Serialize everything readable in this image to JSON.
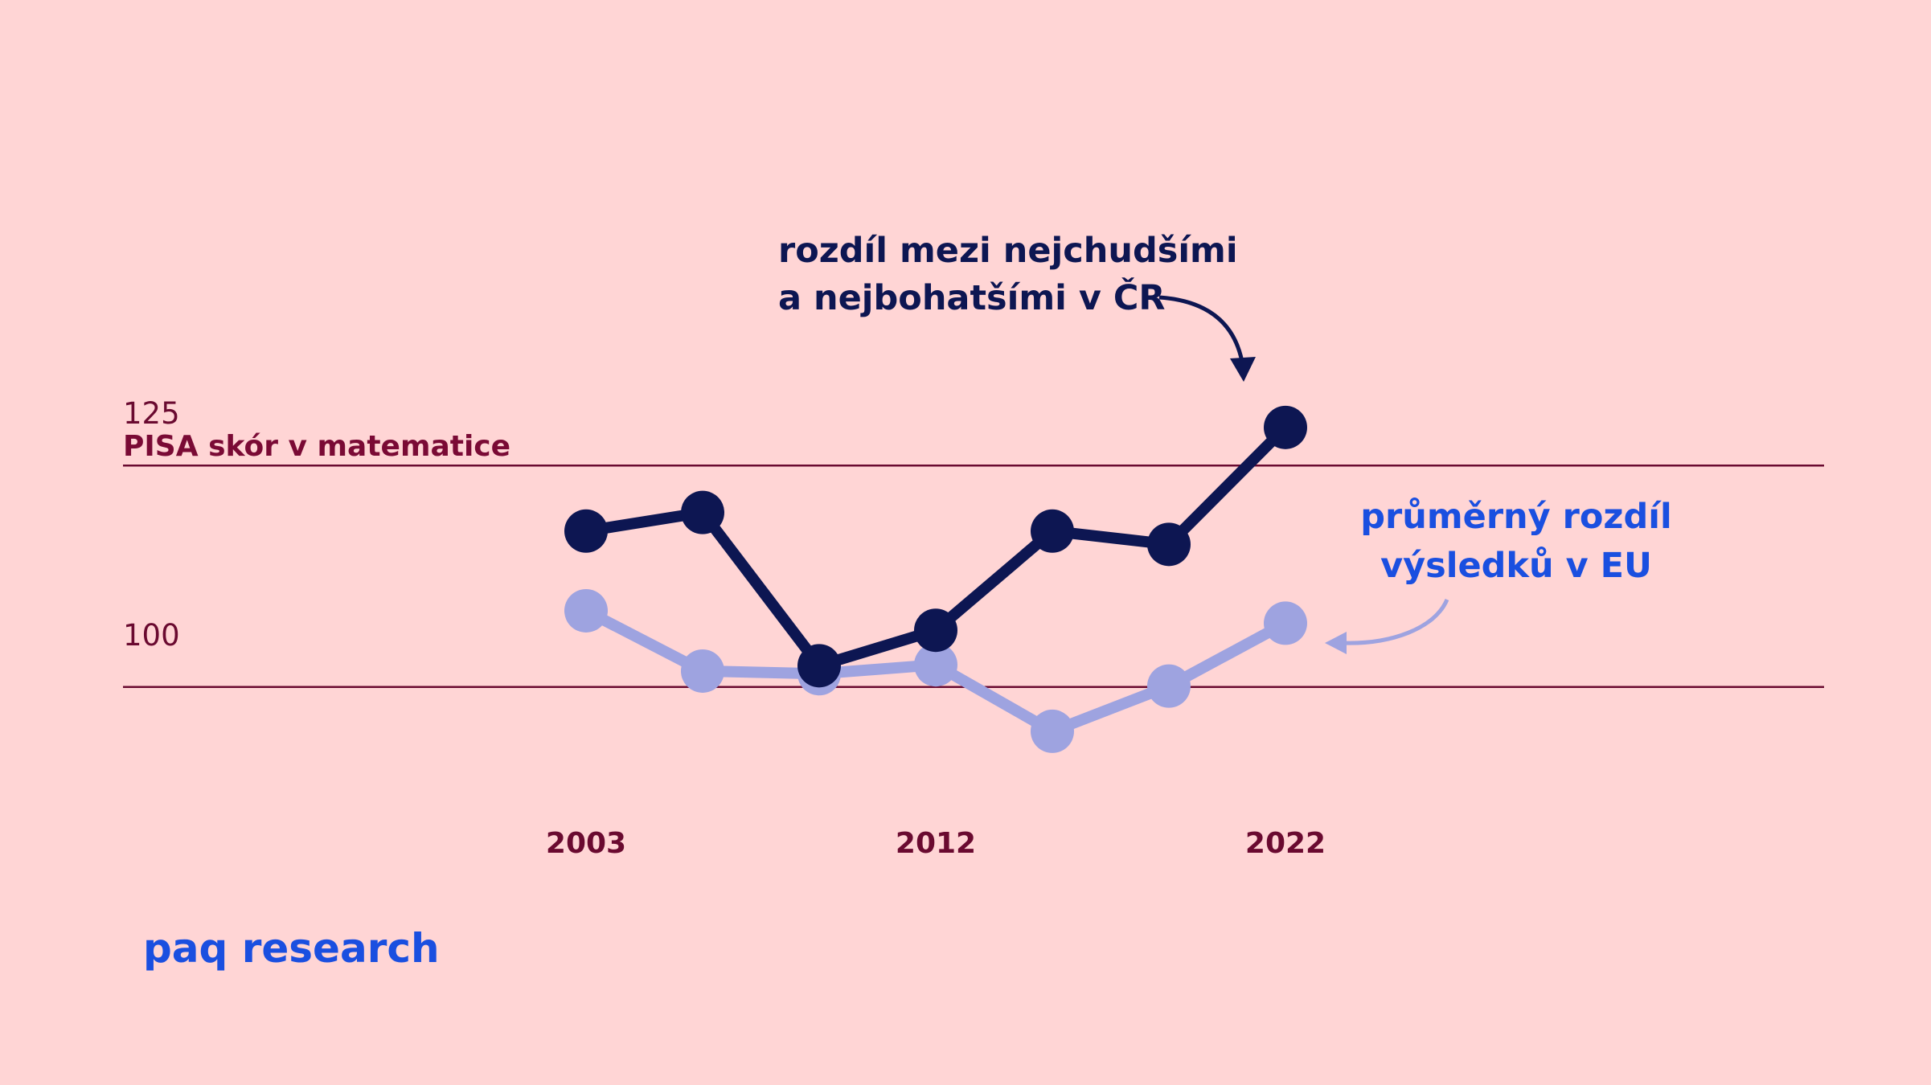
{
  "chart_data": {
    "type": "line",
    "y_axis_label": "PISA skór v matematice",
    "categories": [
      "2003",
      null,
      null,
      "2012",
      null,
      null,
      "2022"
    ],
    "series": [
      {
        "color": "#0d1652",
        "values": [
          117.6,
          119.7,
          102.4,
          106.4,
          117.6,
          116.1,
          129.3
        ]
      },
      {
        "color": "#9ea3e0",
        "values": [
          108.6,
          101.8,
          101.5,
          102.5,
          95.0,
          100.1,
          107.2
        ]
      }
    ],
    "ylim": [
      90,
      135
    ],
    "yticks": [
      100,
      125
    ],
    "grid": true,
    "annotations": [
      [
        "rozdíl mezi nejchudšími",
        "a nejbohatšími v ČR"
      ],
      [
        "průměrný rozdíl",
        "výsledků v EU"
      ]
    ]
  },
  "brand": "paq research"
}
